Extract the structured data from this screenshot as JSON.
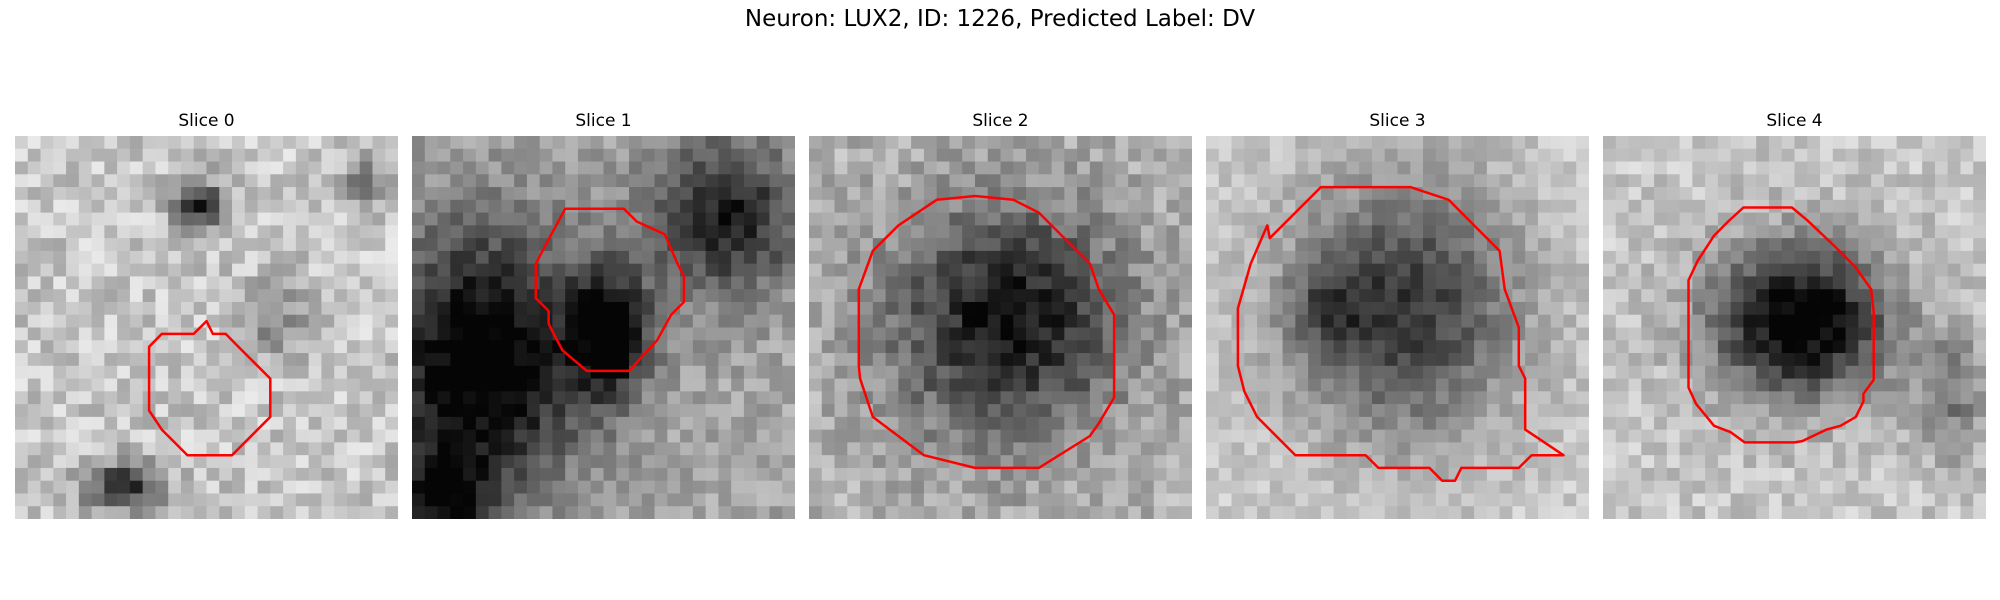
{
  "figure": {
    "title": "Neuron: LUX2, ID: 1226, Predicted Label: DV"
  },
  "panels": [
    {
      "title": "Slice 0",
      "contour_color": "#ff0000"
    },
    {
      "title": "Slice 1",
      "contour_color": "#ff0000"
    },
    {
      "title": "Slice 2",
      "contour_color": "#ff0000"
    },
    {
      "title": "Slice 3",
      "contour_color": "#ff0000"
    },
    {
      "title": "Slice 4",
      "contour_color": "#ff0000"
    }
  ]
}
